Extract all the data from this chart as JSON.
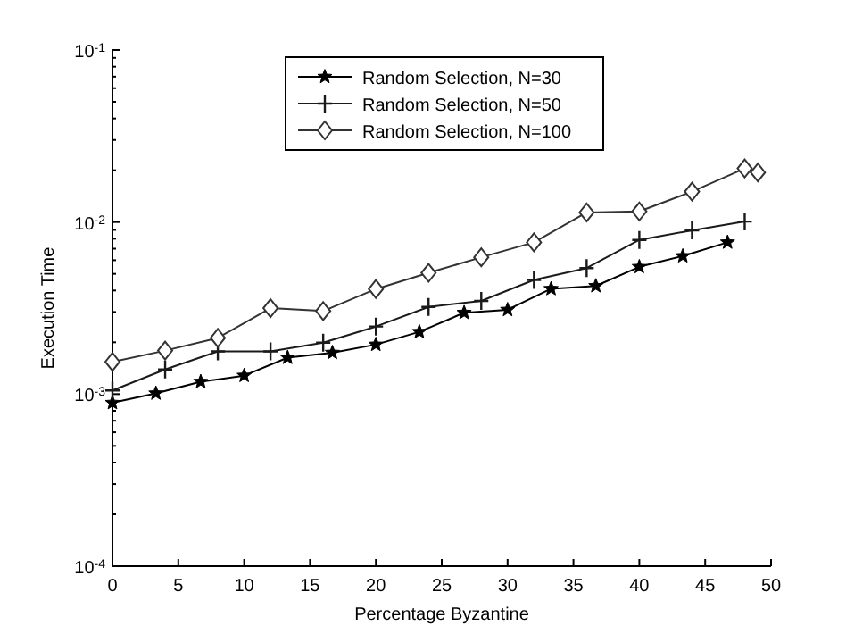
{
  "chart_data": {
    "type": "line",
    "xlabel": "Percentage Byzantine",
    "ylabel": "Execution Time",
    "log": "y",
    "grid": false,
    "legend": "top",
    "xlim": [
      0,
      50
    ],
    "xticks": [
      0,
      5,
      10,
      15,
      20,
      25,
      30,
      35,
      40,
      45,
      50
    ],
    "ylim": [
      0.0001,
      0.1
    ],
    "yticks": [
      {
        "value": 0.0001,
        "label": "10$^{-4}$"
      },
      {
        "value": 0.0002,
        "label": null
      },
      {
        "value": 0.0003,
        "label": null
      },
      {
        "value": 0.0004,
        "label": null
      },
      {
        "value": 0.0005,
        "label": null
      },
      {
        "value": 0.0006,
        "label": null
      },
      {
        "value": 0.0007,
        "label": null
      },
      {
        "value": 0.0008,
        "label": null
      },
      {
        "value": 0.0009,
        "label": null
      },
      {
        "value": 0.001,
        "label": "10$^{-3}$"
      },
      {
        "value": 0.002,
        "label": null
      },
      {
        "value": 0.003,
        "label": null
      },
      {
        "value": 0.004,
        "label": null
      },
      {
        "value": 0.005,
        "label": null
      },
      {
        "value": 0.006,
        "label": null
      },
      {
        "value": 0.007,
        "label": null
      },
      {
        "value": 0.008,
        "label": null
      },
      {
        "value": 0.009,
        "label": null
      },
      {
        "value": 0.01,
        "label": "10$^{-2}$"
      },
      {
        "value": 0.02,
        "label": null
      },
      {
        "value": 0.03,
        "label": null
      },
      {
        "value": 0.04,
        "label": null
      },
      {
        "value": 0.05,
        "label": null
      },
      {
        "value": 0.06,
        "label": null
      },
      {
        "value": 0.07,
        "label": null
      },
      {
        "value": 0.08,
        "label": null
      },
      {
        "value": 0.09,
        "label": null
      },
      {
        "value": 0.1,
        "label": "10$^{-1}$"
      }
    ],
    "series": [
      {
        "name": "Random Selection, N=30",
        "color": "#000000",
        "marker": "star",
        "x": [
          0,
          3.3,
          6.7,
          10,
          13.3,
          16.7,
          20,
          23.3,
          26.7,
          30,
          33.3,
          36.7,
          40,
          43.3,
          46.7
        ],
        "values": [
          0.00089,
          0.00101,
          0.00118,
          0.00128,
          0.00163,
          0.00174,
          0.00194,
          0.0023,
          0.00297,
          0.00309,
          0.00409,
          0.00425,
          0.00549,
          0.00634,
          0.00762
        ]
      },
      {
        "name": "Random Selection, N=50",
        "color": "#1a1a1a",
        "marker": "cross",
        "x": [
          0,
          4,
          8,
          12,
          16,
          20,
          24,
          28,
          32,
          36,
          40,
          44,
          48
        ],
        "values": [
          0.00105,
          0.00139,
          0.00177,
          0.00177,
          0.00199,
          0.00247,
          0.00321,
          0.00348,
          0.00461,
          0.0054,
          0.00787,
          0.00894,
          0.01007
        ]
      },
      {
        "name": "Random Selection, N=100",
        "color": "#333333",
        "marker": "diamond",
        "x": [
          0,
          4,
          8,
          12,
          16,
          20,
          24,
          28,
          32,
          36,
          40,
          44,
          48,
          49
        ],
        "values": [
          0.00154,
          0.00179,
          0.00212,
          0.00316,
          0.00304,
          0.00408,
          0.00507,
          0.00624,
          0.00762,
          0.01137,
          0.01153,
          0.01503,
          0.02051,
          0.01941
        ]
      }
    ]
  }
}
